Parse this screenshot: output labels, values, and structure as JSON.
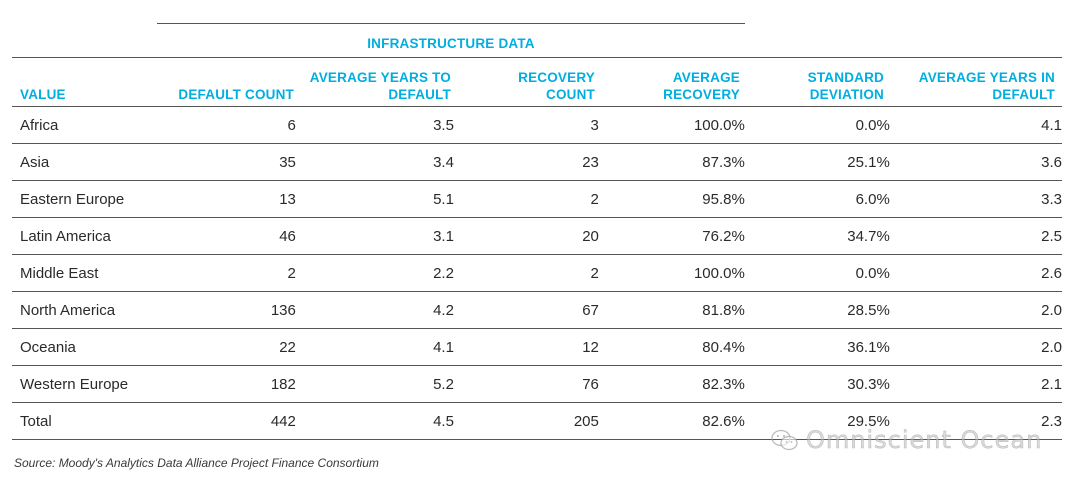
{
  "table": {
    "group_header": "INFRASTRUCTURE DATA",
    "columns": [
      "VALUE",
      "DEFAULT COUNT",
      "AVERAGE YEARS TO DEFAULT",
      "RECOVERY COUNT",
      "AVERAGE RECOVERY",
      "STANDARD DEVIATION",
      "AVERAGE YEARS IN DEFAULT"
    ],
    "rows": [
      [
        "Africa",
        "6",
        "3.5",
        "3",
        "100.0%",
        "0.0%",
        "4.1"
      ],
      [
        "Asia",
        "35",
        "3.4",
        "23",
        "87.3%",
        "25.1%",
        "3.6"
      ],
      [
        "Eastern Europe",
        "13",
        "5.1",
        "2",
        "95.8%",
        "6.0%",
        "3.3"
      ],
      [
        "Latin America",
        "46",
        "3.1",
        "20",
        "76.2%",
        "34.7%",
        "2.5"
      ],
      [
        "Middle East",
        "2",
        "2.2",
        "2",
        "100.0%",
        "0.0%",
        "2.6"
      ],
      [
        "North America",
        "136",
        "4.2",
        "67",
        "81.8%",
        "28.5%",
        "2.0"
      ],
      [
        "Oceania",
        "22",
        "4.1",
        "12",
        "80.4%",
        "36.1%",
        "2.0"
      ],
      [
        "Western Europe",
        "182",
        "5.2",
        "76",
        "82.3%",
        "30.3%",
        "2.1"
      ],
      [
        "Total",
        "442",
        "4.5",
        "205",
        "82.6%",
        "29.5%",
        "2.3"
      ]
    ]
  },
  "source": "Source: Moody's Analytics Data Alliance Project Finance Consortium",
  "watermark": "Omniscient Ocean",
  "colors": {
    "header_accent": "#00aee0",
    "rule": "#555555",
    "text": "#2a2a2a"
  }
}
